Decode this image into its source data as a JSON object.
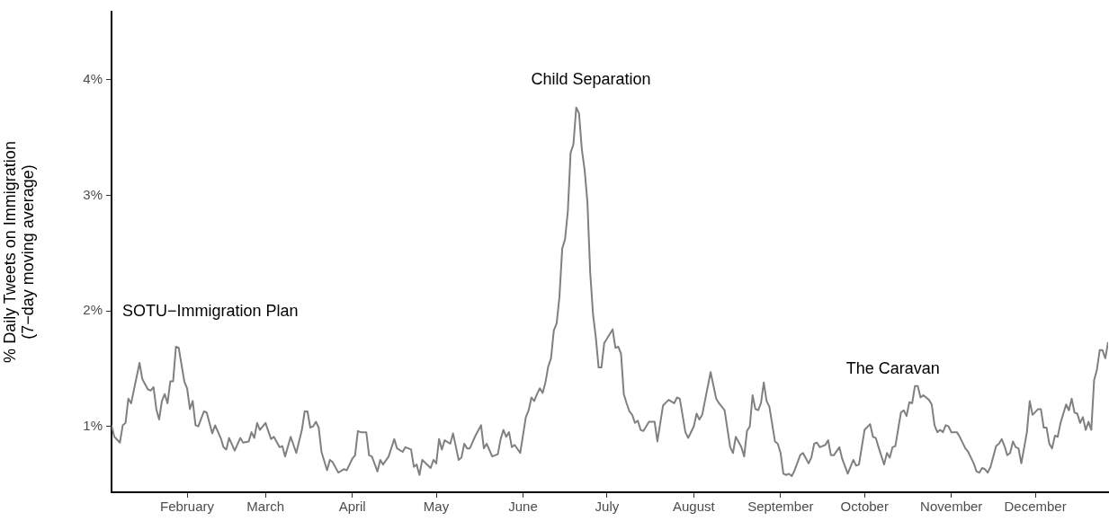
{
  "chart_data": {
    "type": "line",
    "ylabel": "% Daily Tweets on Immigration\n(7−day moving average)",
    "x": [
      "--01-05",
      "--01-06",
      "--01-08",
      "--01-09",
      "--01-10",
      "--01-11",
      "--01-12",
      "--01-15",
      "--01-16",
      "--01-18",
      "--01-19",
      "--01-20",
      "--01-21",
      "--01-22",
      "--01-23",
      "--01-24",
      "--01-25",
      "--01-26",
      "--01-27",
      "--01-28",
      "--01-29",
      "--01-31",
      "--02-01",
      "--02-02",
      "--02-03",
      "--02-04",
      "--02-05",
      "--02-07",
      "--02-08",
      "--02-10",
      "--02-11",
      "--02-13",
      "--02-14",
      "--02-15",
      "--02-16",
      "--02-18",
      "--02-20",
      "--02-21",
      "--02-23",
      "--02-24",
      "--02-25",
      "--02-26",
      "--02-27",
      "--03-01",
      "--03-03",
      "--03-04",
      "--03-06",
      "--03-07",
      "--03-08",
      "--03-10",
      "--03-12",
      "--03-14",
      "--03-15",
      "--03-16",
      "--03-17",
      "--03-18",
      "--03-19",
      "--03-20",
      "--03-21",
      "--03-23",
      "--03-24",
      "--03-25",
      "--03-27",
      "--03-29",
      "--03-30",
      "--04-01",
      "--04-02",
      "--04-03",
      "--04-04",
      "--04-06",
      "--04-07",
      "--04-08",
      "--04-10",
      "--04-11",
      "--04-12",
      "--04-14",
      "--04-16",
      "--04-17",
      "--04-19",
      "--04-20",
      "--04-22",
      "--04-23",
      "--04-24",
      "--04-25",
      "--04-26",
      "--04-29",
      "--04-30",
      "--05-01",
      "--05-02",
      "--05-03",
      "--05-04",
      "--05-06",
      "--05-07",
      "--05-09",
      "--05-10",
      "--05-11",
      "--05-12",
      "--05-13",
      "--05-15",
      "--05-17",
      "--05-18",
      "--05-19",
      "--05-21",
      "--05-23",
      "--05-24",
      "--05-25",
      "--05-26",
      "--05-27",
      "--05-28",
      "--05-29",
      "--05-31",
      "--06-02",
      "--06-03",
      "--06-04",
      "--06-05",
      "--06-06",
      "--06-07",
      "--06-08",
      "--06-09",
      "--06-10",
      "--06-11",
      "--06-12",
      "--06-13",
      "--06-14",
      "--06-15",
      "--06-16",
      "--06-17",
      "--06-18",
      "--06-19",
      "--06-20",
      "--06-21",
      "--06-22",
      "--06-23",
      "--06-24",
      "--06-25",
      "--06-26",
      "--06-27",
      "--06-28",
      "--06-29",
      "--06-30",
      "--07-03",
      "--07-04",
      "--07-05",
      "--07-06",
      "--07-07",
      "--07-08",
      "--07-09",
      "--07-10",
      "--07-11",
      "--07-12",
      "--07-13",
      "--07-14",
      "--07-16",
      "--07-18",
      "--07-19",
      "--07-21",
      "--07-23",
      "--07-25",
      "--07-26",
      "--07-27",
      "--07-29",
      "--07-30",
      "--08-01",
      "--08-02",
      "--08-03",
      "--08-04",
      "--08-07",
      "--08-09",
      "--08-10",
      "--08-12",
      "--08-14",
      "--08-15",
      "--08-16",
      "--08-18",
      "--08-19",
      "--08-20",
      "--08-21",
      "--08-22",
      "--08-23",
      "--08-24",
      "--08-25",
      "--08-26",
      "--08-27",
      "--08-28",
      "--08-30",
      "--08-31",
      "--09-01",
      "--09-02",
      "--09-03",
      "--09-04",
      "--09-05",
      "--09-06",
      "--09-08",
      "--09-09",
      "--09-11",
      "--09-12",
      "--09-13",
      "--09-14",
      "--09-15",
      "--09-17",
      "--09-18",
      "--09-19",
      "--09-20",
      "--09-22",
      "--09-23",
      "--09-25",
      "--09-27",
      "--09-28",
      "--09-29",
      "--10-01",
      "--10-03",
      "--10-04",
      "--10-05",
      "--10-06",
      "--10-08",
      "--10-09",
      "--10-10",
      "--10-11",
      "--10-12",
      "--10-14",
      "--10-15",
      "--10-16",
      "--10-17",
      "--10-18",
      "--10-19",
      "--10-20",
      "--10-21",
      "--10-22",
      "--10-24",
      "--10-25",
      "--10-26",
      "--10-27",
      "--10-28",
      "--10-29",
      "--10-30",
      "--10-31",
      "--11-01",
      "--11-03",
      "--11-04",
      "--11-06",
      "--11-07",
      "--11-09",
      "--11-10",
      "--11-11",
      "--11-12",
      "--11-13",
      "--11-14",
      "--11-15",
      "--11-17",
      "--11-18",
      "--11-19",
      "--11-20",
      "--11-21",
      "--11-22",
      "--11-23",
      "--11-24",
      "--11-25",
      "--11-26",
      "--11-28",
      "--11-29",
      "--11-30",
      "--12-02",
      "--12-03",
      "--12-04",
      "--12-05",
      "--12-06",
      "--12-07",
      "--12-08",
      "--12-09",
      "--12-10",
      "--12-12",
      "--12-13",
      "--12-14",
      "--12-15",
      "--12-16",
      "--12-17",
      "--12-18",
      "--12-19",
      "--12-20",
      "--12-21",
      "--12-22",
      "--12-23",
      "--12-24",
      "--12-25",
      "--12-26",
      "--12-27"
    ],
    "series": [
      {
        "color": "#808080",
        "values": [
          1.01,
          0.91,
          0.86,
          1.01,
          1.03,
          1.24,
          1.2,
          1.55,
          1.41,
          1.32,
          1.31,
          1.34,
          1.15,
          1.06,
          1.22,
          1.28,
          1.2,
          1.39,
          1.39,
          1.69,
          1.68,
          1.39,
          1.33,
          1.15,
          1.22,
          1.01,
          1.0,
          1.13,
          1.12,
          0.94,
          1.01,
          0.9,
          0.82,
          0.8,
          0.9,
          0.79,
          0.9,
          0.86,
          0.87,
          0.95,
          0.9,
          1.03,
          0.97,
          1.03,
          0.89,
          0.91,
          0.82,
          0.83,
          0.74,
          0.91,
          0.77,
          0.97,
          1.13,
          1.13,
          0.99,
          1.0,
          1.04,
          0.99,
          0.78,
          0.62,
          0.71,
          0.69,
          0.6,
          0.63,
          0.62,
          0.72,
          0.75,
          0.96,
          0.95,
          0.95,
          0.75,
          0.74,
          0.61,
          0.71,
          0.67,
          0.74,
          0.89,
          0.81,
          0.78,
          0.82,
          0.8,
          0.65,
          0.67,
          0.58,
          0.71,
          0.64,
          0.71,
          0.68,
          0.89,
          0.8,
          0.88,
          0.85,
          0.94,
          0.71,
          0.73,
          0.85,
          0.81,
          0.81,
          0.92,
          1.01,
          0.81,
          0.85,
          0.74,
          0.76,
          0.89,
          0.97,
          0.91,
          0.95,
          0.82,
          0.84,
          0.77,
          1.08,
          1.14,
          1.25,
          1.22,
          1.28,
          1.33,
          1.29,
          1.38,
          1.52,
          1.59,
          1.83,
          1.89,
          2.12,
          2.54,
          2.62,
          2.86,
          3.37,
          3.44,
          3.76,
          3.71,
          3.4,
          3.22,
          2.94,
          2.33,
          1.97,
          1.77,
          1.51,
          1.51,
          1.72,
          1.84,
          1.68,
          1.69,
          1.63,
          1.28,
          1.2,
          1.13,
          1.1,
          1.03,
          1.05,
          0.97,
          0.96,
          1.04,
          1.04,
          0.87,
          1.18,
          1.23,
          1.2,
          1.25,
          1.24,
          0.95,
          0.9,
          1.0,
          1.11,
          1.06,
          1.1,
          1.47,
          1.24,
          1.2,
          1.14,
          0.82,
          0.77,
          0.91,
          0.82,
          0.74,
          0.96,
          1.0,
          1.27,
          1.15,
          1.14,
          1.2,
          1.38,
          1.22,
          1.17,
          0.87,
          0.85,
          0.77,
          0.59,
          0.58,
          0.59,
          0.57,
          0.62,
          0.75,
          0.77,
          0.68,
          0.73,
          0.85,
          0.86,
          0.82,
          0.84,
          0.88,
          0.75,
          0.75,
          0.82,
          0.72,
          0.59,
          0.71,
          0.66,
          0.67,
          0.97,
          1.02,
          0.91,
          0.9,
          0.82,
          0.67,
          0.77,
          0.73,
          0.82,
          0.83,
          1.12,
          1.14,
          1.09,
          1.21,
          1.2,
          1.35,
          1.35,
          1.25,
          1.27,
          1.23,
          1.19,
          1.01,
          0.95,
          0.97,
          0.95,
          1.01,
          1.0,
          0.95,
          0.95,
          0.91,
          0.81,
          0.78,
          0.68,
          0.61,
          0.6,
          0.64,
          0.63,
          0.6,
          0.65,
          0.83,
          0.85,
          0.89,
          0.83,
          0.75,
          0.77,
          0.87,
          0.82,
          0.81,
          0.68,
          0.95,
          1.22,
          1.1,
          1.15,
          1.15,
          0.99,
          0.99,
          0.85,
          0.81,
          0.92,
          0.91,
          1.03,
          1.19,
          1.14,
          1.24,
          1.12,
          1.11,
          1.03,
          1.08,
          0.97,
          1.04,
          0.97,
          1.4,
          1.49,
          1.66,
          1.66,
          1.59,
          1.73
        ]
      }
    ],
    "xlim": [
      "--01-05",
      "--12-27"
    ],
    "xticks": [
      {
        "value": "--02-01",
        "label": "February"
      },
      {
        "value": "--03-01",
        "label": "March"
      },
      {
        "value": "--04-01",
        "label": "April"
      },
      {
        "value": "--05-01",
        "label": "May"
      },
      {
        "value": "--06-01",
        "label": "June"
      },
      {
        "value": "--07-01",
        "label": "July"
      },
      {
        "value": "--08-01",
        "label": "August"
      },
      {
        "value": "--09-01",
        "label": "September"
      },
      {
        "value": "--10-01",
        "label": "October"
      },
      {
        "value": "--11-01",
        "label": "November"
      },
      {
        "value": "--12-01",
        "label": "December"
      }
    ],
    "ylim": [
      0.43,
      4.59
    ],
    "yticks": [
      {
        "value": 1,
        "label": "1%"
      },
      {
        "value": 2,
        "label": "2%"
      },
      {
        "value": 3,
        "label": "3%"
      },
      {
        "value": 4,
        "label": "4%"
      }
    ],
    "annotations": [
      "SOTU−Immigration Plan",
      "Child Separation",
      "The Caravan"
    ],
    "grid": false,
    "legend": false,
    "marker": "none",
    "line_style": "solid"
  }
}
